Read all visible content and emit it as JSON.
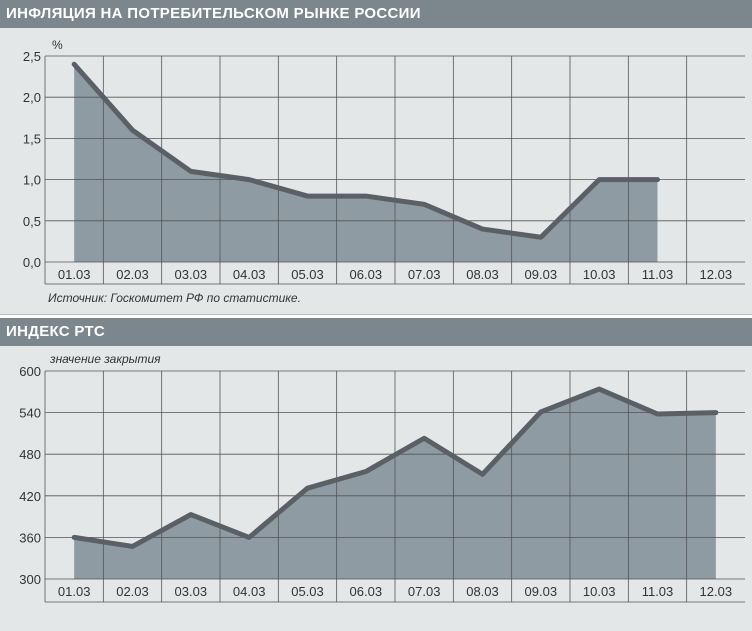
{
  "chart_data": [
    {
      "type": "area",
      "title": "ИНФЛЯЦИЯ НА ПОТРЕБИТЕЛЬСКОМ РЫНКЕ РОССИИ",
      "ylabel": "%",
      "categories": [
        "01.03",
        "02.03",
        "03.03",
        "04.03",
        "05.03",
        "06.03",
        "07.03",
        "08.03",
        "09.03",
        "10.03",
        "11.03",
        "12.03"
      ],
      "values": [
        2.4,
        1.6,
        1.1,
        1.0,
        0.8,
        0.8,
        0.7,
        0.4,
        0.3,
        1.0,
        1.0,
        null
      ],
      "yticks": [
        "0,0",
        "0,5",
        "1,0",
        "1,5",
        "2,0",
        "2,5"
      ],
      "ylim": [
        0,
        2.5
      ],
      "grid": true,
      "source": "Источник: Госкомитет РФ по статистике."
    },
    {
      "type": "area",
      "title": "ИНДЕКС РТС",
      "ylabel": "значение закрытия",
      "categories": [
        "01.03",
        "02.03",
        "03.03",
        "04.03",
        "05.03",
        "06.03",
        "07.03",
        "08.03",
        "09.03",
        "10.03",
        "11.03",
        "12.03"
      ],
      "values": [
        360,
        347,
        393,
        360,
        431,
        455,
        503,
        451,
        541,
        574,
        538,
        540
      ],
      "yticks": [
        "300",
        "360",
        "420",
        "480",
        "540",
        "600"
      ],
      "ylim": [
        300,
        600
      ],
      "grid": true
    }
  ],
  "colors": {
    "header": "#7b868d",
    "panel": "#e4e7e8",
    "fill": "#8e9ba3",
    "line": "#5b6066",
    "grid": "#555555"
  }
}
